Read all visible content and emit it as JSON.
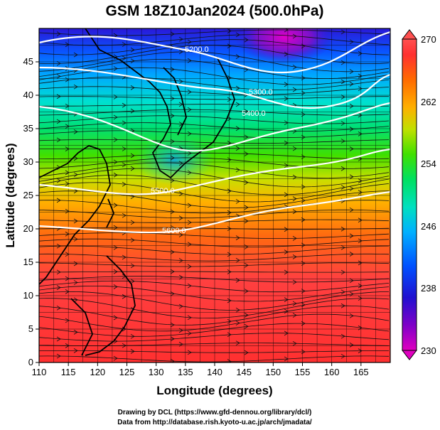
{
  "title": "GSM 18Z10Jan2024 (500.0hPa)",
  "xlabel": "Longitude (degrees)",
  "ylabel": "Latitude  (degrees)",
  "x_ticks": [
    "110",
    "115",
    "120",
    "125",
    "130",
    "135",
    "140",
    "145",
    "150",
    "155",
    "160",
    "165"
  ],
  "y_ticks": [
    "0",
    "5",
    "10",
    "15",
    "20",
    "25",
    "30",
    "35",
    "40",
    "45"
  ],
  "colorbar": {
    "min_label": "230",
    "max_label": "270",
    "tick_labels": [
      "238",
      "246",
      "254",
      "262"
    ],
    "colors": [
      "#e000c0",
      "#8000c0",
      "#2000d0",
      "#0050ff",
      "#00b0ff",
      "#00e0c0",
      "#00e070",
      "#30e000",
      "#a0e000",
      "#e0e000",
      "#ffb000",
      "#ff7000",
      "#ff3000",
      "#ff5050"
    ]
  },
  "contour_labels": [
    "5200.0",
    "5300.0",
    "5400.0",
    "5500.0",
    "5600.0"
  ],
  "credits": {
    "line1": "Drawing by DCL (https://www.gfd-dennou.org/library/dcl/)",
    "line2": "Data from http://database.rish.kyoto-u.ac.jp/arch/jmadata/"
  }
}
